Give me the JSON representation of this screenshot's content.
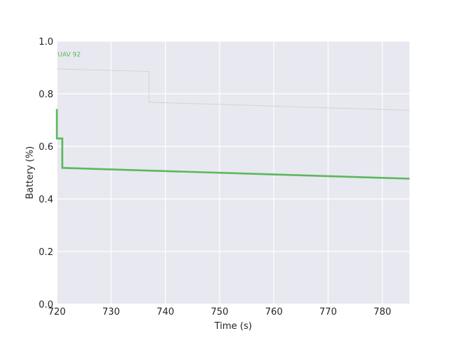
{
  "chart_data": {
    "type": "line",
    "xlabel": "Time (s)",
    "ylabel": "Battery (%)",
    "xlim": [
      720,
      785
    ],
    "ylim": [
      0.0,
      1.0
    ],
    "x_ticks": [
      "720",
      "730",
      "740",
      "750",
      "760",
      "770",
      "780"
    ],
    "y_ticks": [
      "0.0",
      "0.2",
      "0.4",
      "0.6",
      "0.8",
      "1.0"
    ],
    "grid": true,
    "annotations": [
      {
        "text": "UAV 92",
        "x": 720,
        "y": 0.95,
        "color": "#5cb85c"
      }
    ],
    "series": [
      {
        "color": "#d3d3d3",
        "points": [
          [
            720,
            0.895
          ],
          [
            737,
            0.885
          ],
          [
            737,
            0.768
          ],
          [
            785,
            0.737
          ]
        ]
      },
      {
        "color": "#5cb85c",
        "points": [
          [
            720,
            0.742
          ],
          [
            720,
            0.63
          ],
          [
            721,
            0.63
          ],
          [
            721,
            0.518
          ],
          [
            785,
            0.477
          ]
        ]
      }
    ]
  }
}
